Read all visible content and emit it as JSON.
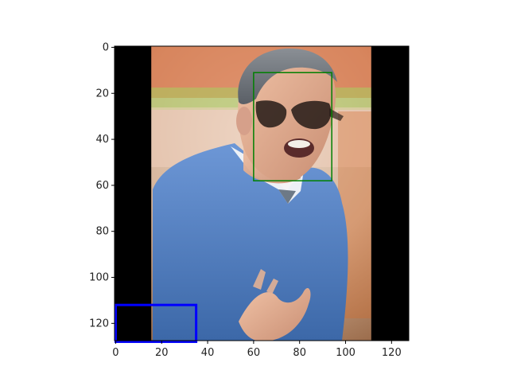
{
  "chart_data": {
    "type": "image",
    "image_size": [
      128,
      128
    ],
    "xlim": [
      -0.5,
      127.5
    ],
    "ylim": [
      127.5,
      -0.5
    ],
    "xticks": [
      0,
      20,
      40,
      60,
      80,
      100,
      120
    ],
    "yticks": [
      0,
      20,
      40,
      60,
      80,
      100,
      120
    ],
    "image": {
      "description_free_regions": [
        {
          "name": "left-black-bar",
          "x": [
            -0.5,
            15.5
          ],
          "y": [
            -0.5,
            127.5
          ],
          "color": "#000000"
        },
        {
          "name": "right-black-bar",
          "x": [
            111.5,
            127.5
          ],
          "y": [
            -0.5,
            127.5
          ],
          "color": "#000000"
        }
      ]
    },
    "boxes": [
      {
        "name": "green-box",
        "x0": 60,
        "y0": 11,
        "x1": 94,
        "y1": 58,
        "color": "#008000"
      },
      {
        "name": "blue-box",
        "x0": 0,
        "y0": 112,
        "x1": 35,
        "y1": 128,
        "color": "#0000ff"
      }
    ]
  }
}
